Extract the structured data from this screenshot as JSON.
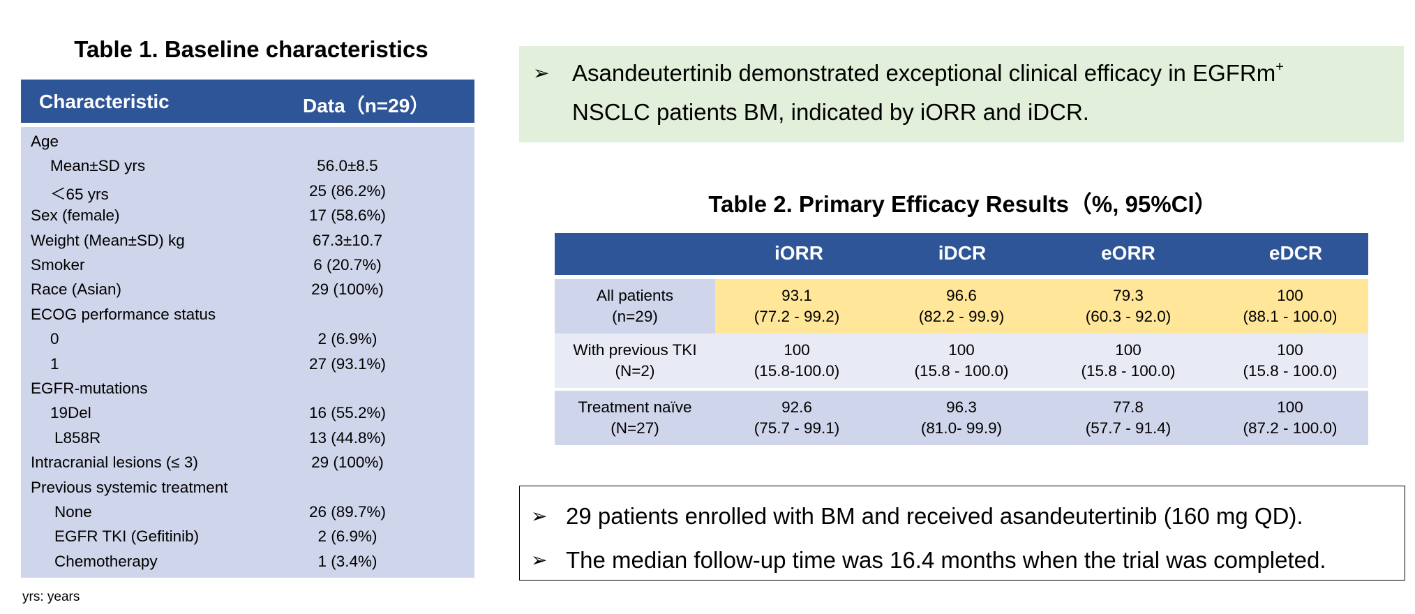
{
  "table1": {
    "title": "Table 1. Baseline characteristics",
    "headers": [
      "Characteristic",
      "Data（n=29）"
    ],
    "rows": [
      {
        "label": "Age",
        "value": "",
        "indent": 0
      },
      {
        "label": "Mean±SD yrs",
        "value": "56.0±8.5",
        "indent": 1
      },
      {
        "label": "＜65 yrs",
        "value": "25 (86.2%)",
        "indent": 1
      },
      {
        "label": "Sex (female)",
        "value": "17 (58.6%)",
        "indent": 0
      },
      {
        "label": "Weight (Mean±SD) kg",
        "value": "67.3±10.7",
        "indent": 0
      },
      {
        "label": "Smoker",
        "value": "6 (20.7%)",
        "indent": 0
      },
      {
        "label": "Race (Asian)",
        "value": "29 (100%)",
        "indent": 0
      },
      {
        "label": "ECOG performance status",
        "value": "",
        "indent": 0
      },
      {
        "label": "0",
        "value": "2 (6.9%)",
        "indent": 1
      },
      {
        "label": "1",
        "value": "27 (93.1%)",
        "indent": 1
      },
      {
        "label": "EGFR-mutations",
        "value": "",
        "indent": 0
      },
      {
        "label": "19Del",
        "value": "16 (55.2%)",
        "indent": 1
      },
      {
        "label": "L858R",
        "value": "13 (44.8%)",
        "indent": 2
      },
      {
        "label": "Intracranial lesions (≤ 3)",
        "value": "29 (100%)",
        "indent": 0
      },
      {
        "label": "Previous systemic treatment",
        "value": "",
        "indent": 0
      },
      {
        "label": "None",
        "value": "26 (89.7%)",
        "indent": 2
      },
      {
        "label": "EGFR TKI (Gefitinib)",
        "value": "2 (6.9%)",
        "indent": 2
      },
      {
        "label": "Chemotherapy",
        "value": "1 (3.4%)",
        "indent": 2
      }
    ],
    "footnote": "yrs: years"
  },
  "callout": {
    "bullet": "➢",
    "line1": "Asandeutertinib demonstrated exceptional clinical efficacy in EGFRm",
    "line1_sup": "+",
    "line2": "NSCLC patients BM, indicated by iORR and iDCR."
  },
  "table2": {
    "title": "Table 2. Primary Efficacy Results（%, 95%CI）",
    "headers": [
      "",
      "iORR",
      "iDCR",
      "eORR",
      "eDCR"
    ],
    "rows": [
      {
        "name": "All patients",
        "n": "(n=29)",
        "cells": [
          {
            "v": "93.1",
            "ci": "(77.2 - 99.2)"
          },
          {
            "v": "96.6",
            "ci": "(82.2 - 99.9)"
          },
          {
            "v": "79.3",
            "ci": "(60.3 - 92.0)"
          },
          {
            "v": "100",
            "ci": "(88.1 - 100.0)"
          }
        ]
      },
      {
        "name": "With previous TKI",
        "n": "(N=2)",
        "cells": [
          {
            "v": "100",
            "ci": "(15.8-100.0)"
          },
          {
            "v": "100",
            "ci": "(15.8 - 100.0)"
          },
          {
            "v": "100",
            "ci": "(15.8 - 100.0)"
          },
          {
            "v": "100",
            "ci": "(15.8 - 100.0)"
          }
        ]
      },
      {
        "name": "Treatment naïve",
        "n": "(N=27)",
        "cells": [
          {
            "v": "92.6",
            "ci": "(75.7 - 99.1)"
          },
          {
            "v": "96.3",
            "ci": "(81.0- 99.9)"
          },
          {
            "v": "77.8",
            "ci": "(57.7 - 91.4)"
          },
          {
            "v": "100",
            "ci": "(87.2 - 100.0)"
          }
        ]
      }
    ]
  },
  "notes": {
    "bullet": "➢",
    "items": [
      "29 patients enrolled with BM and received asandeutertinib (160 mg QD).",
      "The median follow-up time was 16.4 months when the trial was completed."
    ]
  }
}
